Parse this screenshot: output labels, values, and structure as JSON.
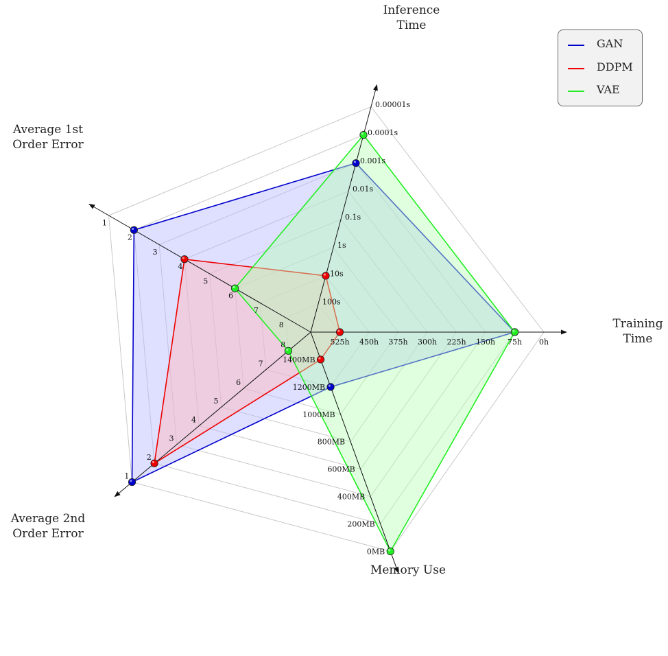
{
  "chart_data": {
    "type": "radar",
    "axes": [
      {
        "key": "inference",
        "label": "Inference\nTime",
        "ticks": [
          "100s",
          "10s",
          "1s",
          "0.1s",
          "0.01s",
          "0.001s",
          "0.0001s",
          "0.00001s"
        ]
      },
      {
        "key": "training",
        "label": "Training\nTime",
        "ticks": [
          "525h",
          "450h",
          "375h",
          "300h",
          "225h",
          "150h",
          "75h",
          "0h"
        ]
      },
      {
        "key": "memory",
        "label": "Memory Use",
        "ticks": [
          "1400MB",
          "1200MB",
          "1000MB",
          "800MB",
          "600MB",
          "400MB",
          "200MB",
          "0MB"
        ]
      },
      {
        "key": "err2",
        "label": "Average 2nd\nOrder Error",
        "ticks": [
          "8",
          "7",
          "6",
          "5",
          "4",
          "3",
          "2",
          "1"
        ]
      },
      {
        "key": "err1",
        "label": "Average 1st\nOrder Error",
        "ticks": [
          "8",
          "7",
          "6",
          "5",
          "4",
          "3",
          "2",
          "1"
        ]
      }
    ],
    "series": [
      {
        "name": "GAN",
        "color": "#0000cc",
        "fill": "#b8b8ff",
        "values": {
          "inference": 0.001,
          "training": 75,
          "memory": 1200,
          "err2": 1,
          "err1": 2
        }
      },
      {
        "name": "DDPM",
        "color": "#ee0000",
        "fill": "#ffb8b8",
        "values": {
          "inference": 10,
          "training": 525,
          "memory": 1400,
          "err2": 2,
          "err1": 4
        }
      },
      {
        "name": "VAE",
        "color": "#22ee22",
        "fill": "#b8ffb8",
        "values": {
          "inference": 0.0001,
          "training": 75,
          "memory": 0,
          "err2": 8,
          "err1": 6
        }
      }
    ],
    "legend_position": "top-right",
    "grid": true
  }
}
